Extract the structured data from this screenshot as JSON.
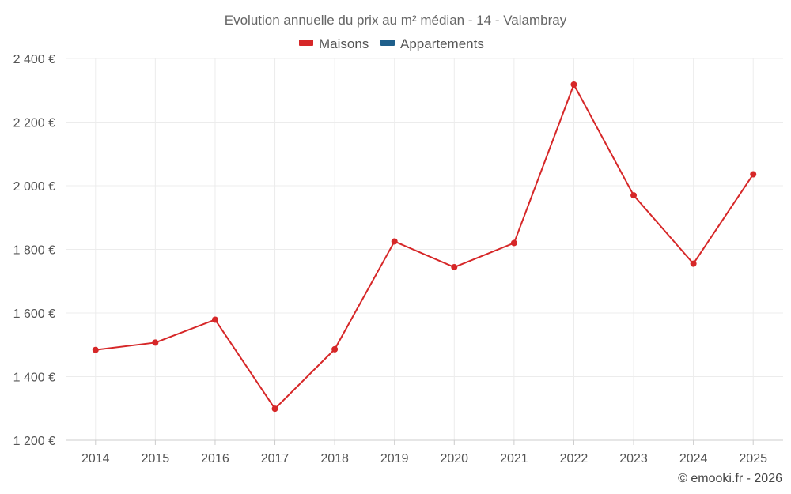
{
  "chart_data": {
    "type": "line",
    "title": "Evolution annuelle du prix au m² médian - 14 - Valambray",
    "legend": [
      {
        "label": "Maisons",
        "color": "#d62728"
      },
      {
        "label": "Appartements",
        "color": "#1f5f8b"
      }
    ],
    "x": [
      "2014",
      "2015",
      "2016",
      "2017",
      "2018",
      "2019",
      "2020",
      "2021",
      "2022",
      "2023",
      "2024",
      "2025"
    ],
    "series": [
      {
        "name": "Maisons",
        "color": "#d62728",
        "values": [
          1484,
          1507,
          1579,
          1299,
          1486,
          1825,
          1744,
          1820,
          2318,
          1970,
          1755,
          2036
        ]
      }
    ],
    "ylim": [
      1200,
      2400
    ],
    "yticks": [
      1200,
      1400,
      1600,
      1800,
      2000,
      2200,
      2400
    ],
    "ytick_labels": [
      "1 200 €",
      "1 400 €",
      "1 600 €",
      "1 800 €",
      "2 000 €",
      "2 200 €",
      "2 400 €"
    ],
    "grid": true,
    "legend_position": "top-center",
    "credit": "© emooki.fr - 2026"
  }
}
